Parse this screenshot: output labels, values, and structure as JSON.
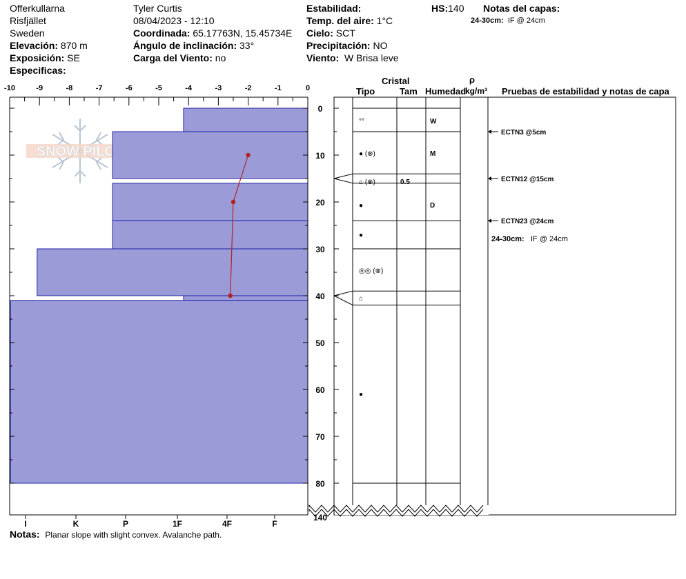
{
  "header": {
    "location": "Offerkullarna",
    "area": "Risfjället",
    "country": "Sweden",
    "elevation_label": "Elevación:",
    "elevation_value": "870 m",
    "aspect_label": "Exposición:",
    "aspect_value": "SE",
    "specifics_label": "Especificas:",
    "observer": "Tyler Curtis",
    "datetime": "08/04/2023 - 12:10",
    "coord_label": "Coordinada:",
    "coord_value": "65.17763N, 15.45734E",
    "slope_label": "Ángulo de inclinación:",
    "slope_value": "33°",
    "windload_label": "Carga del Viento:",
    "windload_value": "no",
    "stability_label": "Estabilidad:",
    "airtemp_label": "Temp. del aire:",
    "airtemp_value": "1°C",
    "sky_label": "Cielo:",
    "sky_value": "SCT",
    "precip_label": "Precipitación:",
    "precip_value": "NO",
    "wind_label": "Viento:",
    "wind_value": "W Brisa leve",
    "hs_label": "HS:",
    "hs_value": "140",
    "layer_notes_label": "Notas del capas:",
    "layer_notes_depth": "24-30cm:",
    "layer_notes_text": "IF @ 24cm"
  },
  "footer": {
    "notes_label": "Notas:",
    "notes_text": "Planar slope with slight convex. Avalanche path."
  },
  "logo": {
    "text": "SNOW PILOT"
  },
  "table_headers": {
    "crystal": "Cristal",
    "type": "Tipo",
    "size": "Tam",
    "moisture": "Humedad",
    "rho": "ρ",
    "density_unit": "kg/m³",
    "tests": "Pruebas de estabilidad y notas de capa"
  },
  "colors": {
    "hardness_fill": "#9b9bd8",
    "hardness_stroke": "#2222aa",
    "temp_line": "#b22222"
  },
  "chart_data": {
    "type": "bar",
    "temp_axis": {
      "ticks": [
        "-10",
        "-9",
        "-8",
        "-7",
        "-6",
        "-5",
        "-4",
        "-3",
        "-2",
        "-1",
        "0"
      ],
      "range": [
        -10,
        0
      ]
    },
    "hardness_axis": {
      "labels": [
        "I",
        "K",
        "P",
        "1F",
        "4F",
        "F"
      ]
    },
    "depth_axis": {
      "ticks": [
        "0",
        "10",
        "20",
        "30",
        "40",
        "50",
        "60",
        "70",
        "80",
        "140"
      ]
    },
    "layers": [
      {
        "top": 0,
        "bottom": 5,
        "hardness": 2.8,
        "moisture": "W",
        "crystal": "°°",
        "size": ""
      },
      {
        "top": 5,
        "bottom": 15,
        "hardness": 4.4,
        "moisture": "M",
        "crystal": "● (⊗)",
        "size": ""
      },
      {
        "top": 16,
        "bottom": 24,
        "hardness": 4.4,
        "moisture": "",
        "crystal": "⌂ (⊗)",
        "size": "0.5"
      },
      {
        "top": 24,
        "bottom": 30,
        "hardness": 4.4,
        "moisture": "D",
        "crystal": "●",
        "size": ""
      },
      {
        "top": 30,
        "bottom": 40,
        "hardness": 6.1,
        "moisture": "",
        "crystal": "●",
        "size": ""
      },
      {
        "top": 40,
        "bottom": 41,
        "hardness": 2.8,
        "moisture": "",
        "crystal": "◎◎ (⊗)",
        "size": ""
      },
      {
        "top": 41,
        "bottom": 80,
        "hardness": 6.7,
        "moisture": "",
        "crystal": "⌂",
        "size": ""
      }
    ],
    "temperature_profile": [
      {
        "depth": 10,
        "temp": -2.0
      },
      {
        "depth": 20,
        "temp": -2.5
      },
      {
        "depth": 40,
        "temp": -2.6
      }
    ],
    "stability_tests": [
      {
        "depth": 5,
        "label": "ECTN3 @5cm"
      },
      {
        "depth": 15,
        "label": "ECTN12 @15cm"
      },
      {
        "depth": 24,
        "label": "ECTN23 @24cm"
      }
    ],
    "layer_note": {
      "depth_label": "24-30cm:",
      "text": "IF @ 24cm"
    }
  }
}
